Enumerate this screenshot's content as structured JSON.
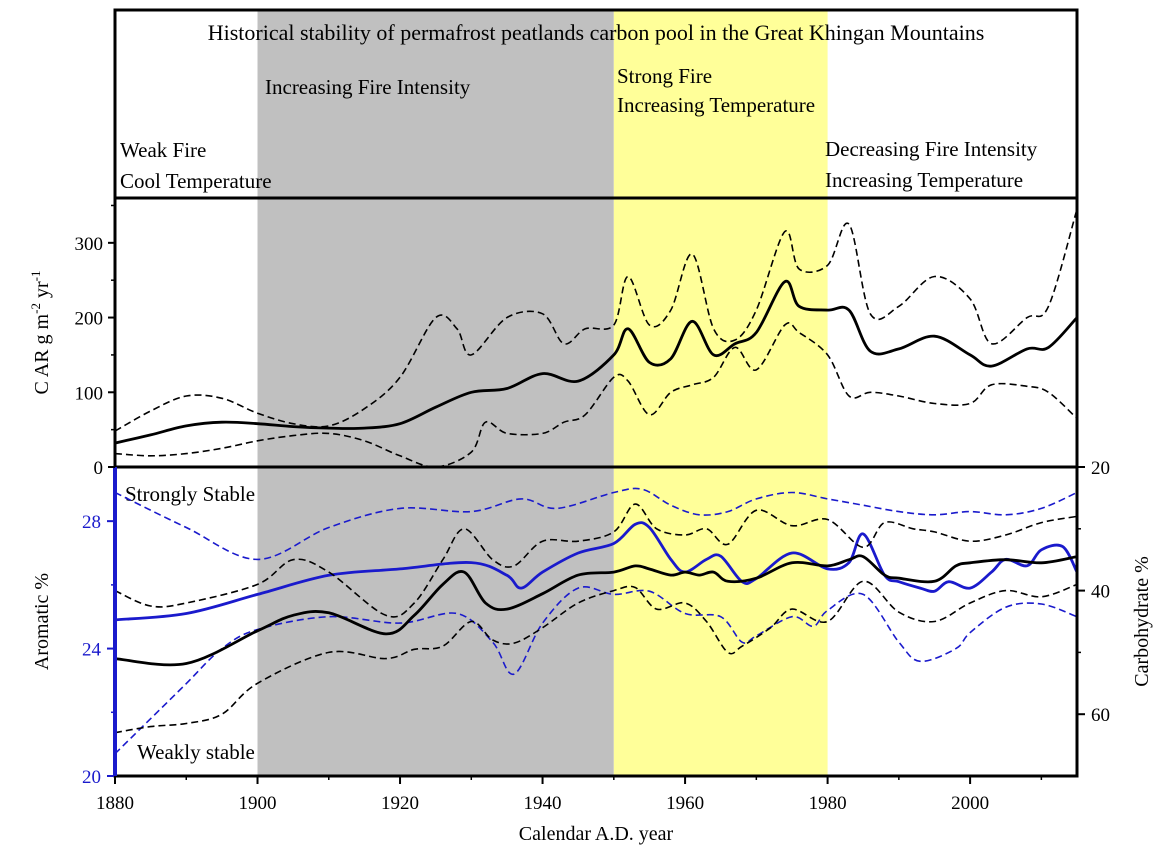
{
  "chart_data": [
    {
      "type": "line",
      "panel": "top",
      "title": "Historical stability of permafrost peatlands carbon pool in the Great Khingan Mountains",
      "ylabel": "C AR g m-2 yr-1",
      "ylabel_parts": {
        "main": "C AR g m",
        "sup1": "-2",
        "mid": " yr",
        "sup2": "-1"
      },
      "xlim": [
        1880,
        2015
      ],
      "ylim": [
        0,
        360
      ],
      "yticks": [
        "0",
        "100",
        "200",
        "300"
      ],
      "ytick_values": [
        0,
        100,
        200,
        300
      ],
      "grid": false,
      "period_bands": [
        {
          "start": 1900,
          "end": 1950,
          "color": "#c0c0c0"
        },
        {
          "start": 1950,
          "end": 1980,
          "color": "#ffff99"
        }
      ],
      "annotations": [
        {
          "lines": [
            "Weak Fire",
            "Cool Temperature"
          ]
        },
        {
          "lines": [
            "Increasing Fire Intensity"
          ]
        },
        {
          "lines": [
            "Strong Fire",
            "Increasing Temperature"
          ]
        },
        {
          "lines": [
            "Decreasing Fire Intensity",
            "Increasing Temperature"
          ]
        }
      ],
      "series": [
        {
          "role": "mean",
          "color": "#000000",
          "dash": "solid",
          "x": [
            1880,
            1885,
            1890,
            1895,
            1900,
            1905,
            1910,
            1915,
            1920,
            1925,
            1930,
            1935,
            1940,
            1945,
            1950,
            1952,
            1955,
            1958,
            1961,
            1964,
            1967,
            1970,
            1974,
            1976,
            1980,
            1983,
            1986,
            1990,
            1995,
            2000,
            2003,
            2008,
            2011,
            2015
          ],
          "y": [
            32,
            43,
            55,
            60,
            58,
            54,
            52,
            52,
            58,
            80,
            100,
            105,
            125,
            115,
            150,
            185,
            140,
            145,
            195,
            150,
            165,
            180,
            248,
            215,
            210,
            210,
            155,
            158,
            175,
            150,
            135,
            158,
            160,
            200
          ]
        },
        {
          "role": "upper bound",
          "color": "#000000",
          "dash": "dashed",
          "x": [
            1880,
            1885,
            1890,
            1895,
            1900,
            1905,
            1910,
            1915,
            1920,
            1925,
            1928,
            1930,
            1935,
            1940,
            1943,
            1946,
            1950,
            1952,
            1955,
            1958,
            1961,
            1964,
            1967,
            1970,
            1974,
            1976,
            1980,
            1983,
            1986,
            1990,
            1995,
            2000,
            2003,
            2008,
            2011,
            2015
          ],
          "y": [
            48,
            75,
            95,
            92,
            72,
            58,
            55,
            78,
            120,
            200,
            185,
            150,
            200,
            205,
            165,
            185,
            190,
            255,
            190,
            210,
            285,
            185,
            170,
            210,
            315,
            265,
            270,
            325,
            205,
            215,
            255,
            225,
            165,
            200,
            215,
            345
          ]
        },
        {
          "role": "lower bound",
          "color": "#000000",
          "dash": "dashed",
          "x": [
            1880,
            1885,
            1890,
            1895,
            1900,
            1905,
            1910,
            1915,
            1920,
            1925,
            1930,
            1932,
            1935,
            1940,
            1943,
            1946,
            1950,
            1952,
            1955,
            1958,
            1961,
            1964,
            1967,
            1970,
            1974,
            1976,
            1980,
            1983,
            1986,
            1990,
            1995,
            2000,
            2003,
            2008,
            2011,
            2015
          ],
          "y": [
            18,
            15,
            18,
            25,
            35,
            42,
            45,
            35,
            15,
            0,
            20,
            60,
            45,
            45,
            60,
            70,
            120,
            115,
            70,
            100,
            110,
            120,
            160,
            130,
            190,
            180,
            150,
            95,
            100,
            95,
            85,
            85,
            110,
            108,
            100,
            65
          ]
        }
      ]
    },
    {
      "type": "line",
      "panel": "bottom",
      "xlabel": "Calendar A.D. year",
      "ylabel_left": "Aromatic %",
      "ylabel_right": "Carbohydrate %",
      "xlim": [
        1880,
        2015
      ],
      "ylim_left": [
        20,
        29.7
      ],
      "ylim_right": [
        70,
        20
      ],
      "xticks": [
        "1880",
        "1900",
        "1920",
        "1940",
        "1960",
        "1980",
        "2000"
      ],
      "xtick_values": [
        1880,
        1900,
        1920,
        1940,
        1960,
        1980,
        2000
      ],
      "yticks_left": [
        "20",
        "24",
        "28"
      ],
      "ytick_values_left": [
        20,
        24,
        28
      ],
      "yticks_right": [
        "20",
        "40",
        "60"
      ],
      "ytick_values_right": [
        20,
        40,
        60
      ],
      "grid": false,
      "left_axis_color": "#1a1acc",
      "annotations": [
        "Strongly Stable",
        "Weakly stable"
      ],
      "series": [
        {
          "role": "Aromatic % mean",
          "axis": "left",
          "color": "#1a1acc",
          "dash": "solid",
          "x": [
            1880,
            1890,
            1900,
            1910,
            1920,
            1930,
            1935,
            1937,
            1940,
            1945,
            1950,
            1953,
            1955,
            1958,
            1960,
            1963,
            1965,
            1968,
            1970,
            1975,
            1980,
            1983,
            1985,
            1988,
            1990,
            1993,
            1995,
            1997,
            2000,
            2003,
            2005,
            2008,
            2010,
            2013,
            2015
          ],
          "y": [
            24.9,
            25.1,
            25.7,
            26.3,
            26.5,
            26.7,
            26.3,
            25.9,
            26.4,
            27.0,
            27.3,
            27.9,
            27.8,
            26.8,
            26.4,
            26.8,
            26.9,
            26.1,
            26.2,
            27.0,
            26.5,
            26.7,
            27.6,
            26.3,
            26.1,
            25.9,
            25.8,
            26.1,
            25.9,
            26.4,
            26.8,
            26.6,
            27.1,
            27.2,
            26.4
          ]
        },
        {
          "role": "Aromatic % upper bound",
          "axis": "left",
          "color": "#1a1acc",
          "dash": "dashed",
          "x": [
            1880,
            1890,
            1900,
            1910,
            1920,
            1930,
            1937,
            1942,
            1950,
            1954,
            1958,
            1962,
            1966,
            1970,
            1975,
            1980,
            1985,
            1990,
            1995,
            2000,
            2005,
            2010,
            2015
          ],
          "y": [
            28.9,
            27.8,
            26.8,
            27.8,
            28.4,
            28.3,
            28.7,
            28.4,
            28.9,
            29.0,
            28.5,
            28.2,
            28.3,
            28.7,
            28.9,
            28.7,
            28.5,
            28.3,
            28.2,
            28.3,
            28.2,
            28.4,
            28.9
          ]
        },
        {
          "role": "Aromatic % lower bound",
          "axis": "left",
          "color": "#1a1acc",
          "dash": "dashed",
          "x": [
            1880,
            1885,
            1890,
            1895,
            1900,
            1910,
            1920,
            1928,
            1933,
            1936,
            1940,
            1945,
            1950,
            1955,
            1960,
            1965,
            1968,
            1970,
            1975,
            1978,
            1980,
            1985,
            1990,
            1993,
            1998,
            2000,
            2005,
            2010,
            2015
          ],
          "y": [
            20.7,
            21.8,
            22.9,
            24.0,
            24.6,
            25.0,
            24.8,
            25.1,
            24.2,
            23.2,
            24.8,
            25.9,
            25.7,
            25.8,
            25.1,
            25.0,
            24.2,
            24.4,
            25.0,
            24.7,
            25.2,
            25.7,
            24.2,
            23.6,
            24.0,
            24.5,
            25.3,
            25.4,
            25.0
          ]
        },
        {
          "role": "Carbohydrate % mean",
          "axis": "right",
          "color": "#000000",
          "dash": "solid",
          "x": [
            1880,
            1890,
            1900,
            1905,
            1910,
            1918,
            1922,
            1926,
            1929,
            1932,
            1935,
            1940,
            1945,
            1950,
            1953,
            1955,
            1958,
            1960,
            1962,
            1964,
            1966,
            1970,
            1975,
            1980,
            1983,
            1985,
            1988,
            1990,
            1995,
            1998,
            2000,
            2005,
            2010,
            2015
          ],
          "y": [
            51.0,
            51.8,
            46.5,
            44.0,
            43.6,
            47.0,
            44.0,
            39.0,
            37.0,
            42.0,
            43.0,
            40.5,
            37.5,
            37.0,
            36.0,
            36.5,
            37.5,
            37.0,
            37.5,
            37.0,
            38.5,
            38.0,
            35.5,
            36.0,
            35.0,
            34.5,
            37.5,
            38.0,
            38.5,
            36.0,
            35.5,
            35.0,
            35.5,
            34.5
          ]
        },
        {
          "role": "Carbohydrate % upper bound",
          "axis": "right",
          "color": "#000000",
          "dash": "dashed",
          "x": [
            1880,
            1885,
            1890,
            1900,
            1905,
            1910,
            1918,
            1922,
            1926,
            1929,
            1933,
            1936,
            1940,
            1945,
            1950,
            1953,
            1956,
            1960,
            1963,
            1966,
            1970,
            1975,
            1980,
            1985,
            1988,
            1992,
            1995,
            2000,
            2005,
            2010,
            2015
          ],
          "y": [
            40.0,
            42.5,
            42.0,
            39.0,
            35.0,
            37.0,
            44.0,
            42.0,
            35.0,
            30.0,
            35.0,
            36.0,
            32.0,
            32.0,
            30.5,
            26.0,
            30.0,
            31.0,
            30.0,
            32.5,
            27.0,
            29.5,
            28.5,
            33.0,
            29.0,
            30.0,
            30.5,
            32.0,
            31.0,
            29.0,
            28.0
          ]
        },
        {
          "role": "Carbohydrate % lower bound",
          "axis": "right",
          "color": "#000000",
          "dash": "dashed",
          "x": [
            1880,
            1885,
            1890,
            1895,
            1900,
            1910,
            1918,
            1922,
            1926,
            1930,
            1933,
            1936,
            1940,
            1945,
            1950,
            1953,
            1956,
            1960,
            1963,
            1966,
            1968,
            1972,
            1975,
            1980,
            1985,
            1990,
            1995,
            2000,
            2005,
            2010,
            2015
          ],
          "y": [
            63.0,
            62.0,
            61.5,
            60.0,
            55.0,
            50.0,
            51.0,
            49.5,
            49.0,
            45.0,
            48.0,
            48.5,
            46.0,
            42.0,
            40.0,
            39.5,
            43.0,
            42.0,
            45.0,
            50.0,
            49.0,
            46.0,
            43.0,
            45.0,
            38.5,
            43.5,
            45.0,
            42.0,
            40.0,
            41.0,
            39.0
          ]
        }
      ]
    }
  ]
}
